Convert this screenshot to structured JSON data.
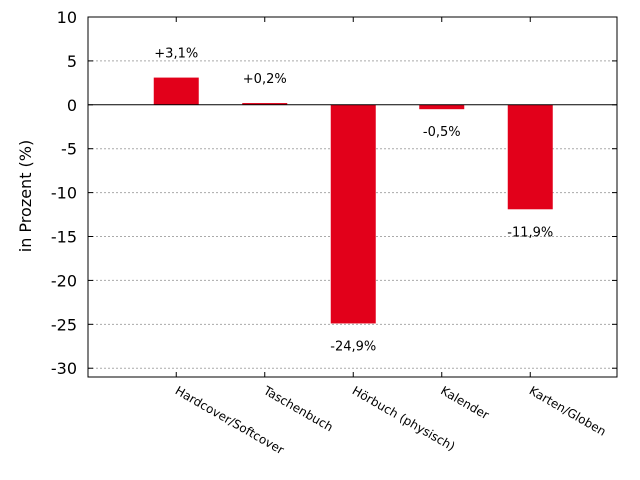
{
  "chart_data": {
    "type": "bar",
    "categories": [
      "Hardcover/Softcover",
      "Taschenbuch",
      "Hörbuch (physisch)",
      "Kalender",
      "Karten/Globen"
    ],
    "values": [
      3.1,
      0.2,
      -24.9,
      -0.5,
      -11.9
    ],
    "data_labels": [
      "+3,1%",
      "+0,2%",
      "-24,9%",
      "-0,5%",
      "-11,9%"
    ],
    "ylabel": "in Prozent (%)",
    "xlabel": "",
    "ylim": [
      -31,
      10
    ],
    "yticks": [
      10,
      5,
      0,
      -5,
      -10,
      -15,
      -20,
      -25,
      -30
    ],
    "grid": "horizontal-dotted",
    "bar_color": "#e2001a",
    "legend": "none"
  }
}
